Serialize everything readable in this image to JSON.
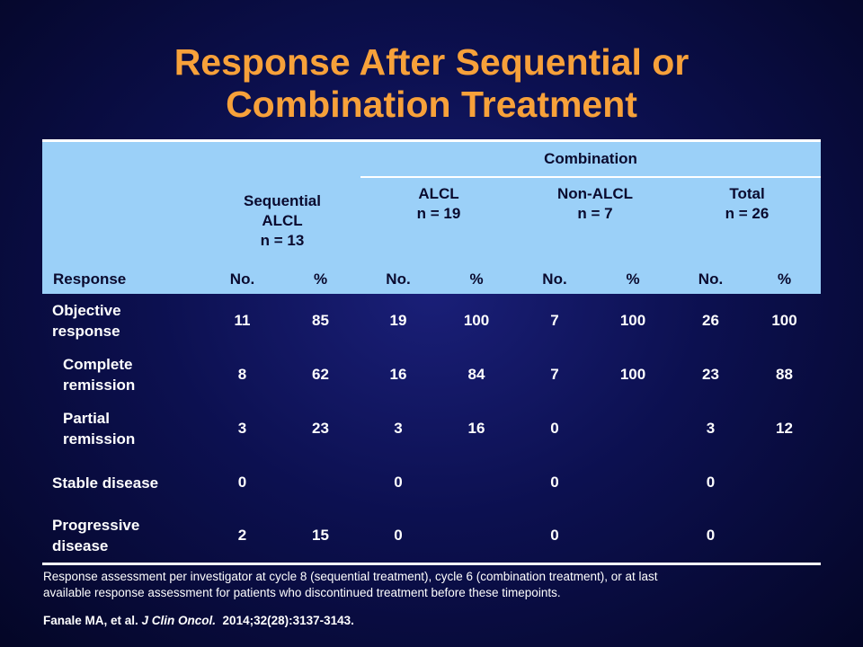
{
  "title": {
    "line1": "Response After Sequential or",
    "line2": "Combination Treatment"
  },
  "table": {
    "group_header": "Combination",
    "columns": {
      "sequential": {
        "line1": "Sequential",
        "line2": "ALCL",
        "line3": "n = 13"
      },
      "alcl": {
        "line1": "ALCL",
        "line2": "n = 19"
      },
      "nonalcl": {
        "line1": "Non-ALCL",
        "line2": "n = 7"
      },
      "total": {
        "line1": "Total",
        "line2": "n = 26"
      }
    },
    "response_label": "Response",
    "no_label": "No.",
    "pct_label": "%",
    "rows": [
      {
        "label1": "Objective",
        "label2": "response",
        "values": [
          "11",
          "85",
          "19",
          "100",
          "7",
          "100",
          "26",
          "100"
        ]
      },
      {
        "label1": "Complete",
        "label2": "remission",
        "values": [
          "8",
          "62",
          "16",
          "84",
          "7",
          "100",
          "23",
          "88"
        ]
      },
      {
        "label1": "Partial",
        "label2": "remission",
        "values": [
          "3",
          "23",
          "3",
          "16",
          "0",
          "",
          "3",
          "12"
        ]
      },
      {
        "label1": "Stable disease",
        "label2": "",
        "values": [
          "0",
          "",
          "0",
          "",
          "0",
          "",
          "0",
          ""
        ]
      },
      {
        "label1": "Progressive",
        "label2": "disease",
        "values": [
          "2",
          "15",
          "0",
          "",
          "0",
          "",
          "0",
          ""
        ]
      }
    ]
  },
  "footnote": {
    "line1": "Response assessment per investigator  at cycle 8 (sequential treatment), cycle 6 (combination treatment), or at last",
    "line2": "available response assessment for patients who discontinued treatment before these timepoints."
  },
  "citation": {
    "authors": "Fanale MA, et al. ",
    "journal": "J Clin Oncol.",
    "details": "  2014;32(28):3137-3143."
  }
}
